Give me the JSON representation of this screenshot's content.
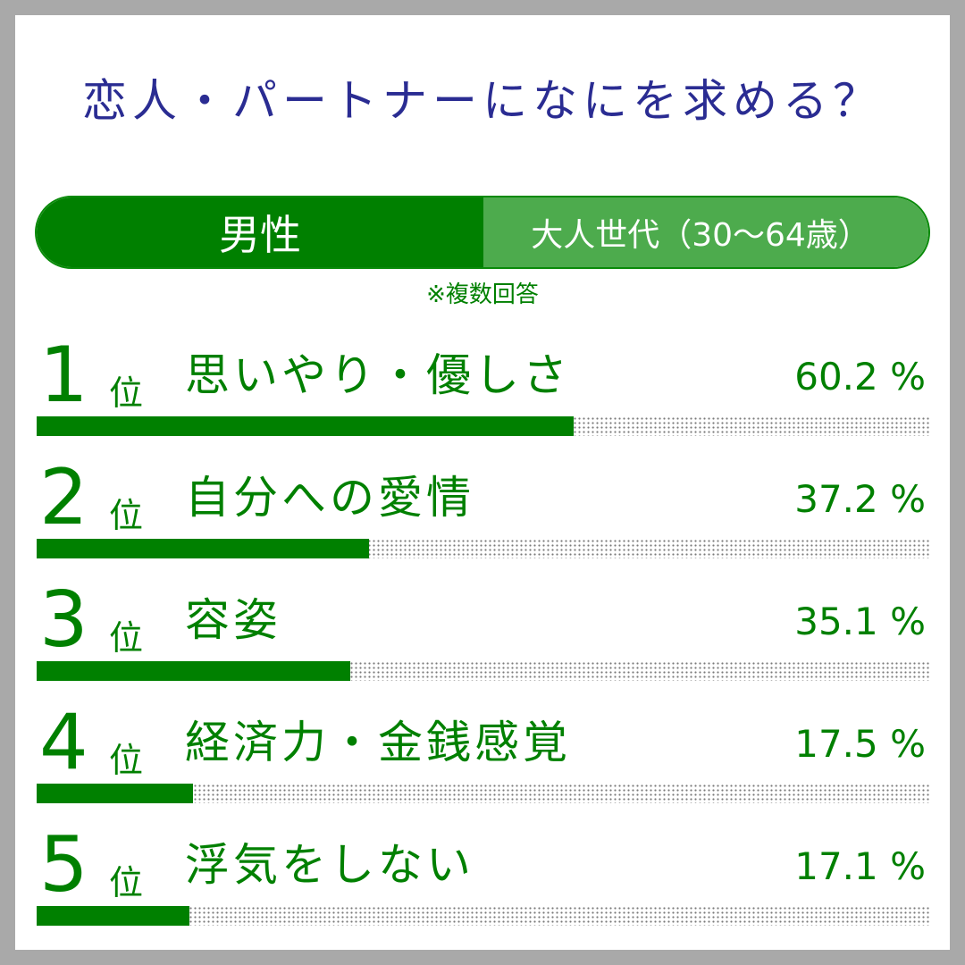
{
  "title": "恋人・パートナーになにを求める？",
  "segment": {
    "gender": "男性",
    "age_group": "大人世代（30〜64歳）"
  },
  "note": "※複数回答",
  "rank_suffix": "位",
  "colors": {
    "title": "#2a2c92",
    "accent": "#008000",
    "accent_light": "#4dab4d",
    "frame": "#a9a9a9"
  },
  "chart_data": {
    "type": "bar",
    "orientation": "horizontal",
    "unit": "%",
    "xlim": [
      0,
      100
    ],
    "categories": [
      "思いやり・優しさ",
      "自分への愛情",
      "容姿",
      "経済力・金銭感覚",
      "浮気をしない"
    ],
    "values": [
      60.2,
      37.2,
      35.1,
      17.5,
      17.1
    ],
    "ranks": [
      "1",
      "2",
      "3",
      "4",
      "5"
    ],
    "value_labels": [
      "60.2 %",
      "37.2 %",
      "35.1 %",
      "17.5 %",
      "17.1 %"
    ]
  }
}
